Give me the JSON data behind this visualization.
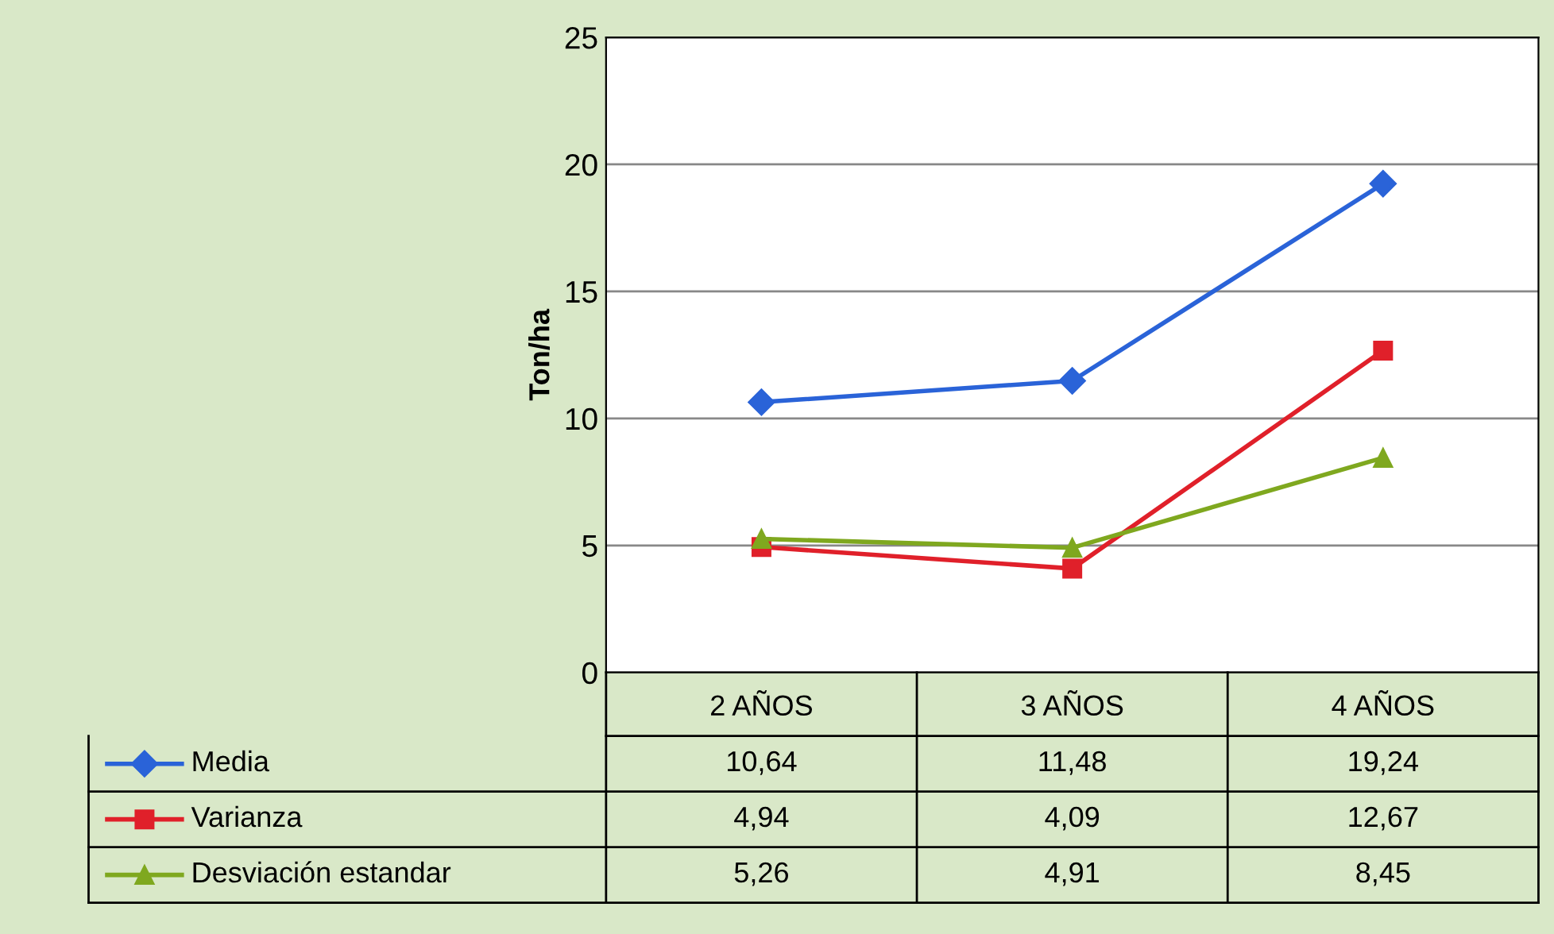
{
  "chart_data": {
    "type": "line",
    "ylabel": "Ton/ha",
    "categories": [
      "2 AÑOS",
      "3 AÑOS",
      "4 AÑOS"
    ],
    "ylim": [
      0,
      25
    ],
    "yticks": [
      0,
      5,
      10,
      15,
      20,
      25
    ],
    "grid": "y",
    "legend": "bottom",
    "line_style": "solid",
    "series": [
      {
        "name": "Media",
        "color": "#2a63d8",
        "marker": "diamond",
        "values": [
          10.64,
          11.48,
          19.24
        ],
        "value_labels": [
          "10,64",
          "11,48",
          "19,24"
        ]
      },
      {
        "name": "Varianza",
        "color": "#e0202a",
        "marker": "square",
        "values": [
          4.94,
          4.09,
          12.67
        ],
        "value_labels": [
          "4,94",
          "4,09",
          "12,67"
        ]
      },
      {
        "name": "Desviación estandar",
        "color": "#7fa81f",
        "marker": "triangle",
        "values": [
          5.26,
          4.91,
          8.45
        ],
        "value_labels": [
          "5,26",
          "4,91",
          "8,45"
        ]
      }
    ]
  }
}
